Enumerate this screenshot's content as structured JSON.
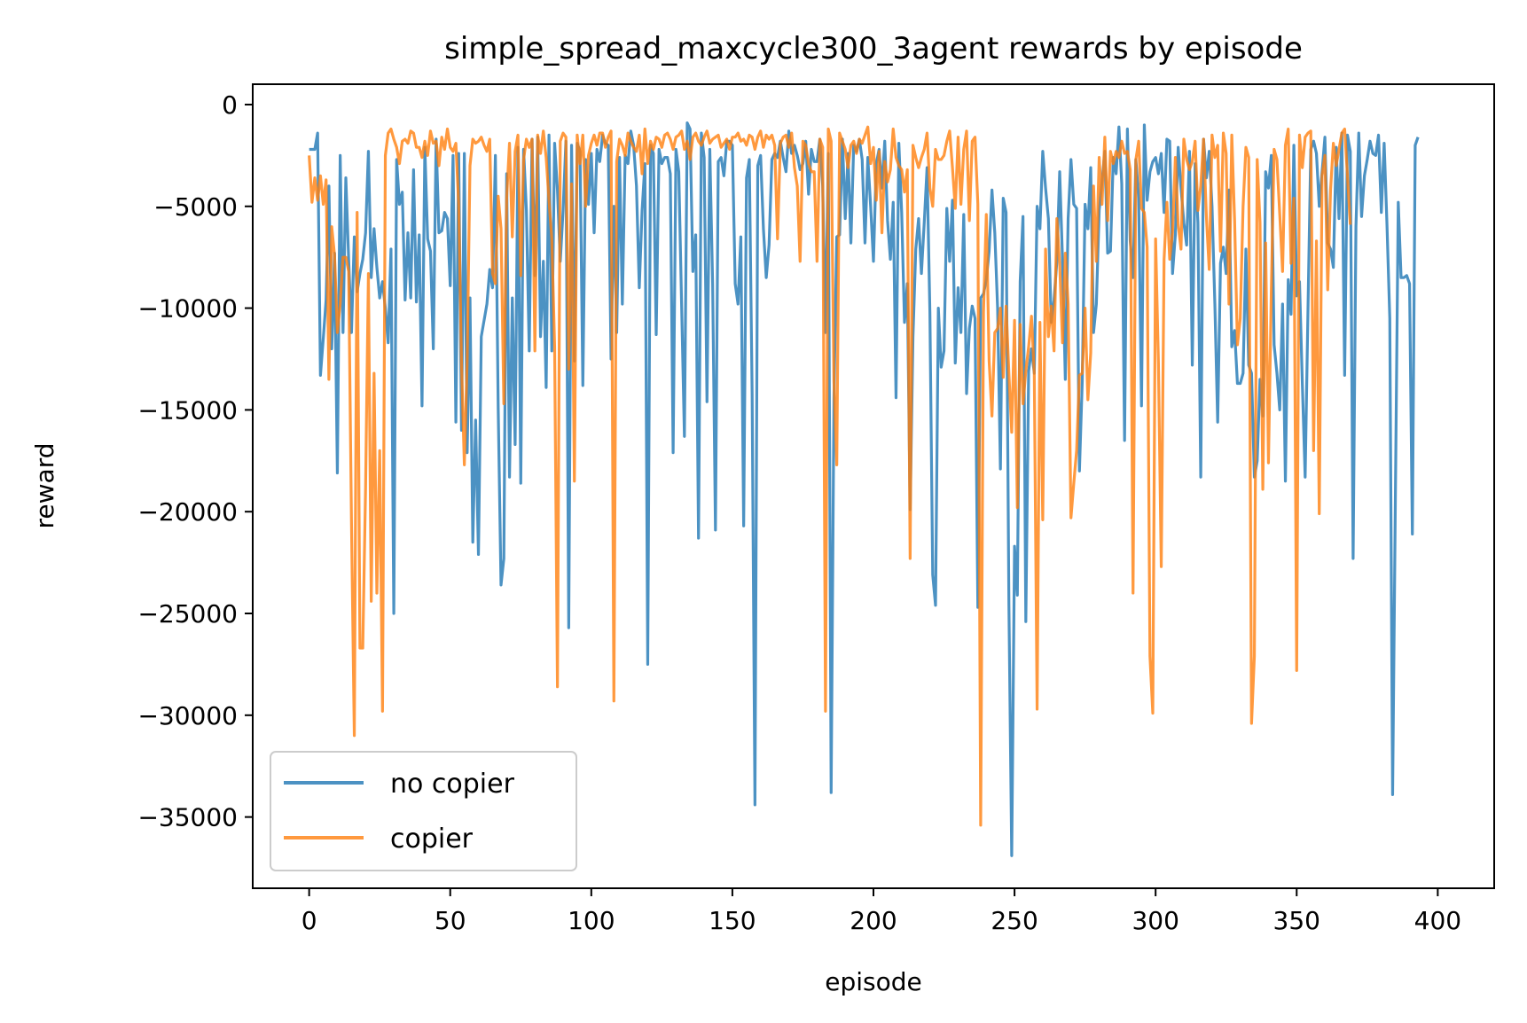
{
  "chart_data": {
    "type": "line",
    "title": "simple_spread_maxcycle300_3agent rewards by episode",
    "xlabel": "episode",
    "ylabel": "reward",
    "xlim": [
      -20,
      420
    ],
    "ylim": [
      -38500,
      1000
    ],
    "xticks": [
      0,
      50,
      100,
      150,
      200,
      250,
      300,
      350,
      400
    ],
    "yticks": [
      0,
      -5000,
      -10000,
      -15000,
      -20000,
      -25000,
      -30000,
      -35000
    ],
    "xtick_labels": [
      "0",
      "50",
      "100",
      "150",
      "200",
      "250",
      "300",
      "350",
      "400"
    ],
    "ytick_labels": [
      "0",
      "−5000",
      "−10000",
      "−15000",
      "−20000",
      "−25000",
      "−30000",
      "−35000"
    ],
    "legend_position": "lower-left",
    "series": [
      {
        "name": "no copier",
        "color": "#1f77b4",
        "values": [
          -2200,
          -2200,
          -2200,
          -1400,
          -13300,
          -11500,
          -9600,
          -4000,
          -12000,
          -7300,
          -18100,
          -2500,
          -11200,
          -3600,
          -7600,
          -11200,
          -6500,
          -9200,
          -8300,
          -7600,
          -6300,
          -2300,
          -8500,
          -6100,
          -8000,
          -9500,
          -8700,
          -10000,
          -11700,
          -7100,
          -25000,
          -2700,
          -4900,
          -4300,
          -9600,
          -6300,
          -9500,
          -3200,
          -9700,
          -6400,
          -14800,
          -2100,
          -6600,
          -7200,
          -12000,
          -1700,
          -6300,
          -6200,
          -5300,
          -5600,
          -8900,
          -2500,
          -15600,
          -2400,
          -16000,
          -2400,
          -17100,
          -9500,
          -21500,
          -15500,
          -22100,
          -11400,
          -10600,
          -9800,
          -8100,
          -9000,
          -2500,
          -14900,
          -23600,
          -22300,
          -3400,
          -18300,
          -9500,
          -16700,
          -2100,
          -18600,
          -2200,
          -5200,
          -12100,
          -1700,
          -8400,
          -1600,
          -11400,
          -7700,
          -13900,
          -1500,
          -12100,
          -1900,
          -4200,
          -7700,
          -5200,
          -1800,
          -25700,
          -2000,
          -12600,
          -1900,
          -2300,
          -13800,
          -2700,
          -4900,
          -2400,
          -6300,
          -2200,
          -2800,
          -1500,
          -1900,
          -2000,
          -12500,
          -5000,
          -11200,
          -2600,
          -9800,
          -2500,
          -2900,
          -1300,
          -2000,
          -4000,
          -9000,
          -5200,
          -2900,
          -27500,
          -2000,
          -2400,
          -11300,
          -2200,
          -2900,
          -2600,
          -2600,
          -3400,
          -17100,
          -2200,
          -3300,
          -9800,
          -16300,
          -900,
          -1200,
          -8200,
          -6400,
          -21300,
          -1400,
          -2600,
          -14600,
          -2200,
          -8800,
          -20900,
          -2800,
          -2600,
          -3500,
          -1800,
          -1800,
          -2000,
          -8800,
          -9800,
          -6500,
          -20700,
          -3600,
          -2700,
          -14200,
          -34400,
          -3000,
          -2500,
          -6100,
          -8500,
          -6900,
          -2700,
          -2400,
          -2600,
          -1800,
          -2600,
          -3300,
          -1300,
          -2400,
          -2000,
          -2500,
          -3200,
          -2900,
          -1800,
          -4400,
          -2200,
          -2800,
          -2800,
          -1700,
          -4000,
          -11200,
          -2400,
          -33800,
          -14400,
          -6500,
          -6400,
          -1700,
          -5600,
          -2400,
          -6800,
          -2000,
          -2300,
          -1700,
          -2700,
          -6800,
          -2600,
          -5000,
          -7700,
          -2900,
          -2200,
          -4100,
          -1800,
          -5700,
          -7600,
          -4800,
          -14400,
          -1900,
          -5300,
          -10700,
          -8800,
          -19900,
          -11400,
          -7100,
          -5600,
          -8300,
          -5800,
          -3100,
          -10200,
          -23100,
          -24600,
          -10000,
          -12900,
          -12100,
          -5100,
          -7700,
          -4700,
          -12700,
          -9000,
          -11200,
          -5400,
          -14200,
          -11000,
          -9900,
          -10500,
          -24700,
          -9500,
          -9300,
          -8600,
          -7200,
          -4200,
          -6300,
          -10000,
          -17900,
          -4600,
          -5300,
          -24500,
          -36900,
          -21700,
          -24100,
          -8700,
          -5500,
          -25400,
          -13100,
          -12000,
          -13200,
          -5000,
          -6100,
          -2300,
          -4100,
          -5600,
          -10700,
          -9600,
          -7700,
          -3300,
          -7600,
          -13500,
          -5600,
          -2700,
          -4900,
          -5100,
          -18000,
          -13600,
          -4900,
          -6100,
          -3100,
          -11200,
          -9800,
          -5200,
          -3800,
          -2300,
          -7300,
          -7200,
          -2600,
          -3400,
          -1100,
          -3900,
          -16500,
          -1200,
          -6700,
          -8500,
          -2700,
          -4600,
          -14800,
          -1000,
          -4700,
          -3300,
          -2800,
          -2600,
          -3400,
          -2400,
          -5300,
          -1700,
          -1800,
          -8300,
          -6400,
          -2100,
          -4100,
          -5800,
          -6900,
          -2300,
          -12800,
          -2900,
          -5800,
          -18300,
          -1700,
          -3600,
          -2300,
          -5000,
          -9800,
          -15600,
          -7800,
          -7000,
          -8300,
          -4200,
          -11900,
          -11100,
          -13700,
          -13700,
          -13200,
          -7100,
          -12800,
          -13200,
          -18300,
          -17500,
          -13500,
          -15300,
          -3300,
          -4100,
          -2500,
          -11800,
          -13200,
          -15000,
          -9800,
          -18500,
          -8600,
          -10300,
          -2000,
          -9400,
          -8700,
          -13700,
          -18300,
          -10100,
          -2200,
          -1800,
          -2400,
          -5000,
          -3300,
          -1600,
          -6800,
          -7100,
          -8000,
          -2100,
          -5600,
          -1400,
          -13300,
          -1500,
          -2300,
          -22300,
          -6000,
          -1400,
          -5500,
          -3500,
          -2700,
          -1800,
          -2400,
          -2500,
          -1500,
          -5300,
          -1900,
          -5900,
          -10500,
          -33900,
          -19000,
          -4800,
          -8500,
          -8500,
          -8400,
          -8800,
          -21100,
          -2000,
          -1600
        ]
      },
      {
        "name": "copier",
        "color": "#ff7f0e",
        "values": [
          -2500,
          -4800,
          -3600,
          -4700,
          -3500,
          -4900,
          -3700,
          -13500,
          -6000,
          -7400,
          -11200,
          -9800,
          -7500,
          -7500,
          -8200,
          -20500,
          -31000,
          -5300,
          -26700,
          -26700,
          -18800,
          -8300,
          -24400,
          -13200,
          -24000,
          -17000,
          -29800,
          -2500,
          -1400,
          -1200,
          -1700,
          -2100,
          -2900,
          -1800,
          -1700,
          -1900,
          -1300,
          -1400,
          -2100,
          -2100,
          -2600,
          -1800,
          -2500,
          -1300,
          -1900,
          -1800,
          -3000,
          -1600,
          -2200,
          -1200,
          -2100,
          -2300,
          -1900,
          -4900,
          -12700,
          -17700,
          -12600,
          -3000,
          -1700,
          -1900,
          -1800,
          -1600,
          -2000,
          -2300,
          -1700,
          -8300,
          -8800,
          -4500,
          -6100,
          -14700,
          -4600,
          -1900,
          -6500,
          -2300,
          -1500,
          -8400,
          -2700,
          -1700,
          -2100,
          -1700,
          -12100,
          -1500,
          -2400,
          -1300,
          -2600,
          -4700,
          -6600,
          -11900,
          -28600,
          -1800,
          -1400,
          -1600,
          -13000,
          -3900,
          -18500,
          -1500,
          -2900,
          -1500,
          -5000,
          -2500,
          -1900,
          -1500,
          -2000,
          -1400,
          -1400,
          -2100,
          -1600,
          -1300,
          -29300,
          -2800,
          -1700,
          -2000,
          -2500,
          -1400,
          -1800,
          -2100,
          -2300,
          -1500,
          -3400,
          -1200,
          -2900,
          -1800,
          -2200,
          -1600,
          -1700,
          -2100,
          -1500,
          -1400,
          -1700,
          -2200,
          -1600,
          -1500,
          -1300,
          -2200,
          -1800,
          -2700,
          -1600,
          -1400,
          -1800,
          -2000,
          -1600,
          -1300,
          -1900,
          -1700,
          -1600,
          -1500,
          -2100,
          -1900,
          -1700,
          -2200,
          -1600,
          -1600,
          -1400,
          -1800,
          -1700,
          -2000,
          -1500,
          -1600,
          -2200,
          -1600,
          -1300,
          -2100,
          -1500,
          -1700,
          -1500,
          -2000,
          -6600,
          -1900,
          -1600,
          -1500,
          -2100,
          -1400,
          -3100,
          -4000,
          -7700,
          -1800,
          -2000,
          -2900,
          -3300,
          -3300,
          -7700,
          -1700,
          -2100,
          -29800,
          -1200,
          -1800,
          -13600,
          -17700,
          -1400,
          -1800,
          -2200,
          -3100,
          -2000,
          -1800,
          -2400,
          -1700,
          -1900,
          -1500,
          -1100,
          -2900,
          -2100,
          -4700,
          -2300,
          -6300,
          -2800,
          -3800,
          -3200,
          -1200,
          -2600,
          -3000,
          -3200,
          -4300,
          -3200,
          -22300,
          -2000,
          -2600,
          -3100,
          -2600,
          -2200,
          -1400,
          -4100,
          -5000,
          -2200,
          -2700,
          -2700,
          -2500,
          -1800,
          -1300,
          -3100,
          -5100,
          -1600,
          -4900,
          -2200,
          -1300,
          -5700,
          -1800,
          -1600,
          -4900,
          -35400,
          -10200,
          -5400,
          -12600,
          -15300,
          -11200,
          -11000,
          -10000,
          -13400,
          -9900,
          -13200,
          -16100,
          -10600,
          -19800,
          -10800,
          -14700,
          -13100,
          -11900,
          -10400,
          -13200,
          -29700,
          -10700,
          -20400,
          -7100,
          -11400,
          -9900,
          -12100,
          -5600,
          -7800,
          -11700,
          -7300,
          -9800,
          -20300,
          -18600,
          -17000,
          -13300,
          -13200,
          -10000,
          -14500,
          -12200,
          -4000,
          -7700,
          -2600,
          -4900,
          -1600,
          -5700,
          -2300,
          -2900,
          -2300,
          -2600,
          -1800,
          -2400,
          -2300,
          -3200,
          -24000,
          -2700,
          -1800,
          -5100,
          -5300,
          -7000,
          -27100,
          -29900,
          -6600,
          -12700,
          -22700,
          -7600,
          -4800,
          -7600,
          -6300,
          -2600,
          -5900,
          -7100,
          -1700,
          -2700,
          -3200,
          -2800,
          -1800,
          -5200,
          -4000,
          -1700,
          -5500,
          -8100,
          -1500,
          -2600,
          -2000,
          -7200,
          -1400,
          -2400,
          -9800,
          -1500,
          -5700,
          -11800,
          -10500,
          -5000,
          -2100,
          -2600,
          -30400,
          -27100,
          -2700,
          -5800,
          -18900,
          -6800,
          -17600,
          -9200,
          -2200,
          -2700,
          -5400,
          -8200,
          -2000,
          -1200,
          -7800,
          -4600,
          -27800,
          -1500,
          -3100,
          -1600,
          -1400,
          -1300,
          -17000,
          -6700,
          -20100,
          -3500,
          -2500,
          -9100,
          -4200,
          -1900,
          -3000,
          -2200,
          -1400,
          -1200,
          -3500,
          -5900
        ]
      }
    ]
  }
}
